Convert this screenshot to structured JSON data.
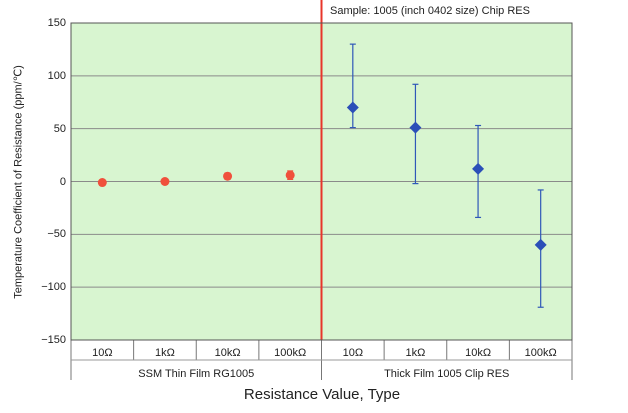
{
  "chart_data": {
    "type": "scatter",
    "title": "Sample: 1005 (inch 0402 size) Chip RES",
    "xlabel": "Resistance Value, Type",
    "ylabel": "Temperature Coefficient of Resistance (ppm/℃)",
    "ylim": [
      -150,
      150
    ],
    "yticks": [
      "150",
      "100",
      "50",
      "0",
      "−50",
      "−100",
      "−150"
    ],
    "ytick_values": [
      150,
      100,
      50,
      0,
      -50,
      -100,
      -150
    ],
    "categories": [
      "10Ω",
      "1kΩ",
      "10kΩ",
      "100kΩ",
      "10Ω",
      "1kΩ",
      "10kΩ",
      "100kΩ"
    ],
    "groups": [
      {
        "label": "SSM Thin Film RG1005",
        "categories": [
          0,
          1,
          2,
          3
        ]
      },
      {
        "label": "Thick Film 1005 Clip RES",
        "categories": [
          4,
          5,
          6,
          7
        ]
      }
    ],
    "grid": true,
    "series": [
      {
        "color": "#f0503c",
        "marker": "circle",
        "points": [
          {
            "x": 0,
            "y": -1,
            "low": -3,
            "high": 1
          },
          {
            "x": 1,
            "y": 0,
            "low": -2,
            "high": 2
          },
          {
            "x": 2,
            "y": 5,
            "low": 2,
            "high": 8
          },
          {
            "x": 3,
            "y": 6,
            "low": 2,
            "high": 10
          }
        ]
      },
      {
        "color": "#2b4fb8",
        "marker": "diamond",
        "points": [
          {
            "x": 4,
            "y": 70,
            "low": 51,
            "high": 130
          },
          {
            "x": 5,
            "y": 51,
            "low": -2,
            "high": 92
          },
          {
            "x": 6,
            "y": 12,
            "low": -34,
            "high": 53
          },
          {
            "x": 7,
            "y": -60,
            "low": -119,
            "high": -8
          }
        ]
      }
    ],
    "colors": {
      "plot_background": "#d8f5d0",
      "grid": "#8a8a8a",
      "divider": "#e8352a",
      "errorbar": "#2f57b8"
    }
  }
}
